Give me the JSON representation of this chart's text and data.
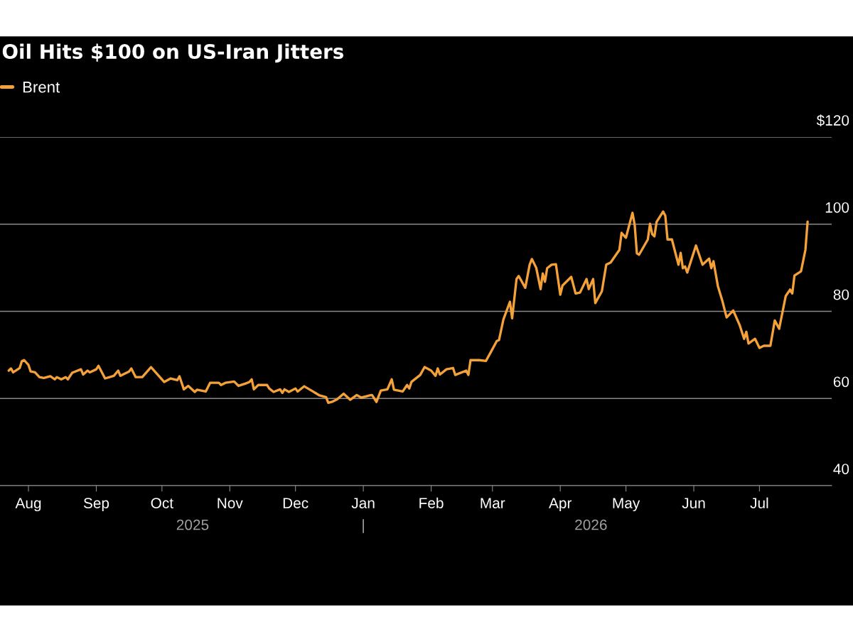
{
  "chart_data": {
    "type": "line",
    "title": "Oil Hits $100 on US-Iran Jitters",
    "x": [
      "2025-07-23",
      "2025-07-24",
      "2025-07-25",
      "2025-07-28",
      "2025-07-29",
      "2025-07-30",
      "2025-08-01",
      "2025-08-02",
      "2025-08-04",
      "2025-08-06",
      "2025-08-08",
      "2025-08-11",
      "2025-08-13",
      "2025-08-14",
      "2025-08-16",
      "2025-08-18",
      "2025-08-19",
      "2025-08-21",
      "2025-08-25",
      "2025-08-26",
      "2025-08-28",
      "2025-08-29",
      "2025-09-01",
      "2025-09-02",
      "2025-09-05",
      "2025-09-09",
      "2025-09-11",
      "2025-09-12",
      "2025-09-16",
      "2025-09-17",
      "2025-09-19",
      "2025-09-22",
      "2025-09-26",
      "2025-10-02",
      "2025-10-05",
      "2025-10-08",
      "2025-10-09",
      "2025-10-11",
      "2025-10-13",
      "2025-10-16",
      "2025-10-17",
      "2025-10-21",
      "2025-10-23",
      "2025-10-27",
      "2025-10-28",
      "2025-10-30",
      "2025-11-03",
      "2025-11-05",
      "2025-11-08",
      "2025-11-10",
      "2025-11-11",
      "2025-11-12",
      "2025-11-14",
      "2025-11-18",
      "2025-11-19",
      "2025-11-21",
      "2025-11-24",
      "2025-11-25",
      "2025-11-26",
      "2025-11-28",
      "2025-12-01",
      "2025-12-02",
      "2025-12-05",
      "2025-12-09",
      "2025-12-10",
      "2025-12-12",
      "2025-12-15",
      "2025-12-16",
      "2025-12-18",
      "2025-12-20",
      "2025-12-23",
      "2025-12-26",
      "2025-12-29",
      "2025-12-31",
      "2026-01-04",
      "2026-01-05",
      "2026-01-07",
      "2026-01-09",
      "2026-01-12",
      "2026-01-14",
      "2026-01-15",
      "2026-01-19",
      "2026-01-21",
      "2026-01-22",
      "2026-01-23",
      "2026-01-27",
      "2026-01-29",
      "2026-02-01",
      "2026-02-03",
      "2026-02-04",
      "2026-02-05",
      "2026-02-08",
      "2026-02-11",
      "2026-02-12",
      "2026-02-17",
      "2026-02-18",
      "2026-02-19",
      "2026-02-23",
      "2026-02-26",
      "2026-02-28",
      "2026-03-03",
      "2026-03-04",
      "2026-03-06",
      "2026-03-09",
      "2026-03-10",
      "2026-03-12",
      "2026-03-13",
      "2026-03-16",
      "2026-03-18",
      "2026-03-19",
      "2026-03-21",
      "2026-03-23",
      "2026-03-24",
      "2026-03-25",
      "2026-03-26",
      "2026-03-28",
      "2026-03-30",
      "2026-04-01",
      "2026-04-02",
      "2026-04-06",
      "2026-04-08",
      "2026-04-10",
      "2026-04-13",
      "2026-04-14",
      "2026-04-16",
      "2026-04-17",
      "2026-04-20",
      "2026-04-22",
      "2026-04-24",
      "2026-04-28",
      "2026-04-29",
      "2026-05-01",
      "2026-05-04",
      "2026-05-05",
      "2026-05-06",
      "2026-05-07",
      "2026-05-11",
      "2026-05-12",
      "2026-05-13",
      "2026-05-14",
      "2026-05-15",
      "2026-05-18",
      "2026-05-19",
      "2026-05-20",
      "2026-05-22",
      "2026-05-25",
      "2026-05-26",
      "2026-05-27",
      "2026-05-28",
      "2026-05-29",
      "2026-06-02",
      "2026-06-05",
      "2026-06-08",
      "2026-06-09",
      "2026-06-10",
      "2026-06-12",
      "2026-06-14",
      "2026-06-16",
      "2026-06-19",
      "2026-06-22",
      "2026-06-24",
      "2026-06-25",
      "2026-06-26",
      "2026-06-29",
      "2026-07-01",
      "2026-07-03",
      "2026-07-06",
      "2026-07-08",
      "2026-07-10",
      "2026-07-13",
      "2026-07-15",
      "2026-07-16",
      "2026-07-17",
      "2026-07-20",
      "2026-07-22",
      "2026-07-23"
    ],
    "series": [
      {
        "name": "Brent",
        "color": "#f5a13a",
        "values": [
          66.4,
          66.9,
          66.0,
          67.0,
          68.6,
          68.8,
          67.7,
          66.2,
          66.0,
          64.9,
          64.7,
          65.1,
          64.4,
          64.9,
          64.4,
          64.9,
          64.4,
          65.9,
          66.7,
          65.5,
          66.4,
          66.0,
          66.7,
          67.5,
          64.6,
          65.2,
          66.4,
          65.2,
          66.2,
          66.9,
          64.9,
          64.9,
          67.2,
          63.8,
          64.6,
          64.2,
          65.1,
          62.1,
          62.9,
          61.5,
          62.0,
          61.6,
          63.6,
          63.6,
          63.1,
          63.6,
          63.9,
          62.9,
          63.4,
          63.8,
          64.4,
          62.1,
          63.1,
          63.1,
          62.3,
          61.5,
          62.1,
          61.3,
          62.1,
          61.5,
          62.3,
          61.6,
          62.8,
          61.6,
          61.3,
          60.7,
          60.3,
          59.0,
          59.3,
          59.8,
          61.1,
          59.7,
          60.8,
          60.2,
          60.7,
          60.8,
          59.2,
          61.8,
          62.1,
          64.4,
          62.0,
          61.6,
          63.1,
          62.3,
          63.8,
          65.4,
          67.2,
          66.4,
          65.2,
          66.9,
          65.5,
          66.7,
          67.0,
          65.4,
          66.4,
          65.4,
          68.8,
          68.8,
          68.6,
          70.4,
          73.2,
          73.4,
          78.1,
          82.2,
          78.4,
          87.4,
          88.1,
          85.4,
          90.7,
          92.0,
          90.0,
          85.1,
          88.7,
          86.8,
          89.9,
          90.7,
          90.8,
          83.8,
          85.9,
          87.9,
          84.1,
          84.3,
          87.4,
          85.1,
          87.4,
          81.9,
          84.6,
          90.7,
          91.2,
          94.1,
          98.0,
          96.9,
          102.6,
          99.8,
          93.3,
          93.0,
          96.5,
          100.1,
          97.7,
          97.2,
          100.5,
          102.9,
          101.9,
          96.5,
          96.5,
          90.7,
          93.4,
          89.9,
          90.3,
          88.9,
          95.1,
          90.7,
          92.1,
          89.9,
          91.5,
          85.8,
          82.5,
          78.6,
          80.2,
          76.8,
          73.7,
          75.3,
          72.6,
          73.7,
          71.6,
          72.1,
          72.1,
          77.9,
          76.0,
          83.5,
          85.0,
          84.1,
          88.2,
          89.2,
          94.1,
          100.6
        ]
      }
    ],
    "xlim": [
      "2025-07-19",
      "2026-08-03"
    ],
    "xticks": [
      {
        "value": "2025-08-01",
        "label": "Aug"
      },
      {
        "value": "2025-09-01",
        "label": "Sep"
      },
      {
        "value": "2025-10-01",
        "label": "Oct"
      },
      {
        "value": "2025-11-01",
        "label": "Nov"
      },
      {
        "value": "2025-12-01",
        "label": "Dec"
      },
      {
        "value": "2026-01-01",
        "label": "Jan"
      },
      {
        "value": "2026-02-01",
        "label": "Feb"
      },
      {
        "value": "2026-03-01",
        "label": "Mar"
      },
      {
        "value": "2026-04-01",
        "label": "Apr"
      },
      {
        "value": "2026-05-01",
        "label": "May"
      },
      {
        "value": "2026-06-01",
        "label": "Jun"
      },
      {
        "value": "2026-07-01",
        "label": "Jul"
      }
    ],
    "x2lim": [
      "2025-07-19",
      "2026-08-03"
    ],
    "x2ticks": [
      {
        "value": "2025-10-15",
        "label": "2025"
      },
      {
        "value": "2026-01-01",
        "label": "|"
      },
      {
        "value": "2026-04-15",
        "label": "2026"
      }
    ],
    "ylim": [
      40,
      120
    ],
    "yticks": [
      40,
      60,
      80,
      100,
      {
        "value": 120,
        "label": "$120"
      }
    ],
    "grid": "y",
    "legend": "top left",
    "marker": "none",
    "line_style": "solid"
  }
}
